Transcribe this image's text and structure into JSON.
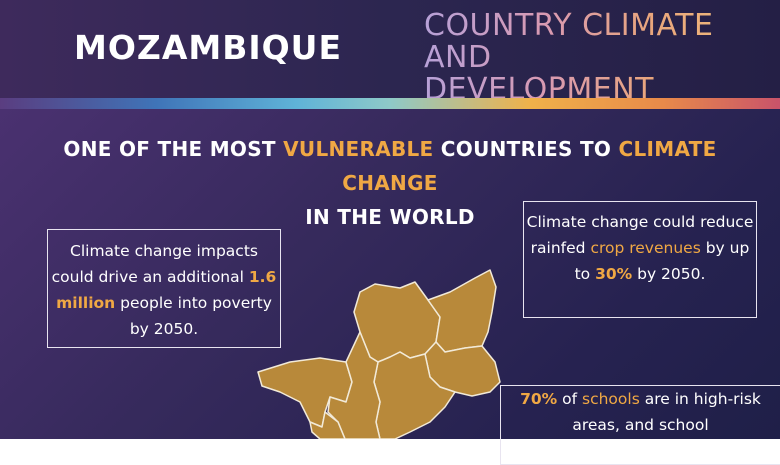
{
  "header": {
    "country": "MOZAMBIQUE",
    "report_line1": "COUNTRY CLIMATE AND",
    "report_line2": "DEVELOPMENT REPORT"
  },
  "headline": {
    "part1": "ONE OF THE MOST ",
    "highlight1": "VULNERABLE",
    "part2": " COUNTRIES TO ",
    "highlight2": "CLIMATE CHANGE",
    "part3": "IN THE WORLD"
  },
  "facts": {
    "poverty": {
      "text1": "Climate change impacts could drive an additional ",
      "highlight": "1.6 million",
      "text2": " people into poverty by 2050."
    },
    "crops": {
      "text1": "Climate change could reduce rainfed ",
      "highlight1": "crop revenues",
      "text2": " by up to ",
      "highlight2": "30%",
      "text3": " by 2050."
    },
    "schools": {
      "highlight1": "70%",
      "text1": " of ",
      "highlight2": "schools",
      "text2": " are in high-risk areas, and school"
    }
  },
  "colors": {
    "accent": "#f0a844",
    "map_fill": "#b8893a",
    "map_border": "#f2ead8"
  },
  "map": {
    "icon": "mozambique-map-icon"
  }
}
